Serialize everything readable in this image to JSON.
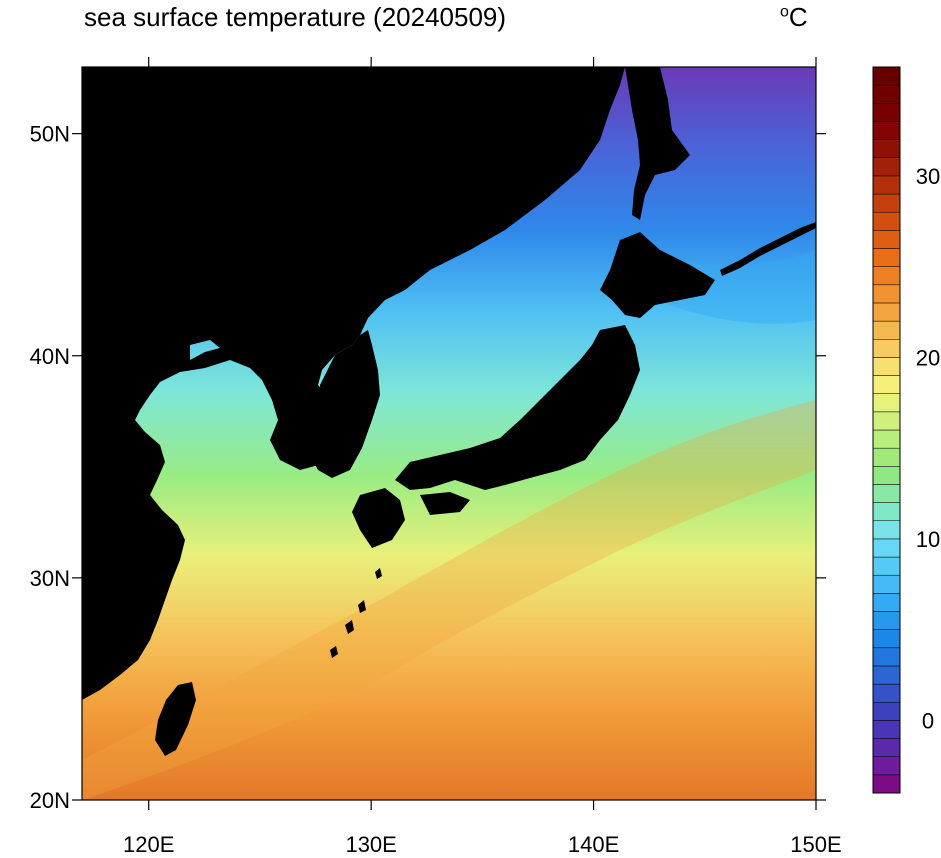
{
  "title": "sea surface temperature (20240509)",
  "unit": {
    "symbol": "o",
    "letter": "C"
  },
  "lon_ticks": [
    {
      "value": 120,
      "label": "120E"
    },
    {
      "value": 130,
      "label": "130E"
    },
    {
      "value": 140,
      "label": "140E"
    },
    {
      "value": 150,
      "label": "150E"
    }
  ],
  "lat_ticks": [
    {
      "value": 20,
      "label": "20N"
    },
    {
      "value": 30,
      "label": "30N"
    },
    {
      "value": 40,
      "label": "40N"
    },
    {
      "value": 50,
      "label": "50N"
    }
  ],
  "extent": {
    "lon": [
      117,
      150
    ],
    "lat": [
      20,
      53
    ]
  },
  "colorbar": {
    "min": -4,
    "max": 36,
    "step": 1,
    "tick_labels": [
      {
        "value": 0,
        "label": "0"
      },
      {
        "value": 10,
        "label": "10"
      },
      {
        "value": 20,
        "label": "20"
      },
      {
        "value": 30,
        "label": "30"
      }
    ],
    "colors": [
      "#7b0c85",
      "#6d1c9c",
      "#5a2aaa",
      "#4a35b5",
      "#3c42be",
      "#3553c8",
      "#2c66d2",
      "#2277de",
      "#1b88e8",
      "#2699ee",
      "#35aaf2",
      "#45baf5",
      "#55caf7",
      "#66d8f6",
      "#78e4e8",
      "#80e8c8",
      "#88e8a4",
      "#90e884",
      "#a0ea7c",
      "#b8ee7c",
      "#cff07c",
      "#e6f27c",
      "#f4f07a",
      "#f8e06e",
      "#f6cc60",
      "#f4b850",
      "#f2a540",
      "#f09330",
      "#ee8024",
      "#e86e18",
      "#de5e14",
      "#d24f10",
      "#c4400c",
      "#b4300a",
      "#a22008",
      "#901006",
      "#820404",
      "#780000",
      "#700000",
      "#680000"
    ],
    "ocean_gradient": [
      "#6a3ab8",
      "#4a64d8",
      "#2f88ea",
      "#4fc0f4",
      "#7ee6d8",
      "#98ec84",
      "#e9f07a",
      "#f6c25a",
      "#f09a38",
      "#e37828"
    ]
  }
}
